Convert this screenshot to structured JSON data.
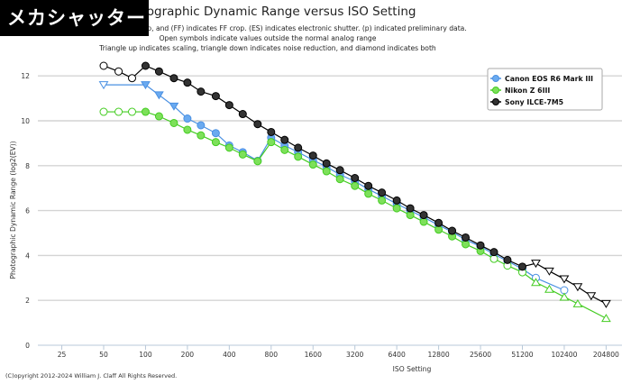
{
  "banner": "メカシャッター",
  "copyright": "(C)opyright 2012-2024 William J. Claff All Rights Reserved.",
  "chart_data": {
    "type": "line",
    "title": "Photographic Dynamic Range versus ISO Setting",
    "subtitles": [
      "(A) indicates APS-C crop, and (FF) indicates FF crop. (ES) indicates electronic shutter. (p) indicated preliminary data.",
      "Open symbols indicate values outside the normal analog range",
      "Triangle up indicates scaling, triangle down indicates noise reduction, and diamond indicates both"
    ],
    "xlabel": "ISO Setting",
    "ylabel": "Photographic Dynamic Range (log2(EV))",
    "x_scale": "log2",
    "x_ticks": [
      "25",
      "50",
      "100",
      "200",
      "400",
      "800",
      "1600",
      "3200",
      "6400",
      "12800",
      "25600",
      "51200",
      "102400",
      "204800"
    ],
    "y_ticks": [
      "0",
      "2",
      "4",
      "6",
      "8",
      "10",
      "12"
    ],
    "ylim": [
      0,
      13
    ],
    "grid": "horizontal",
    "legend_position": "top-right",
    "marker_key": {
      "o": "filled circle",
      "oc": "open circle",
      "td": "open triangle down",
      "tdf": "filled triangle down",
      "tu": "open triangle up"
    },
    "series": [
      {
        "name": "Canon EOS R6 Mark III",
        "color": "#4a90e2",
        "fill": "#6aaaf0",
        "points": [
          [
            50,
            11.6,
            "td"
          ],
          [
            100,
            11.6,
            "tdf"
          ],
          [
            125,
            11.15,
            "tdf"
          ],
          [
            160,
            10.65,
            "tdf"
          ],
          [
            200,
            10.1,
            "o"
          ],
          [
            250,
            9.8,
            "o"
          ],
          [
            320,
            9.45,
            "o"
          ],
          [
            400,
            8.9,
            "o"
          ],
          [
            500,
            8.6,
            "o"
          ],
          [
            640,
            8.22,
            "o"
          ],
          [
            800,
            9.25,
            "o"
          ],
          [
            1000,
            8.9,
            "o"
          ],
          [
            1250,
            8.6,
            "o"
          ],
          [
            1600,
            8.25,
            "o"
          ],
          [
            2000,
            7.95,
            "o"
          ],
          [
            2500,
            7.6,
            "o"
          ],
          [
            3200,
            7.3,
            "o"
          ],
          [
            4000,
            6.95,
            "o"
          ],
          [
            5000,
            6.65,
            "o"
          ],
          [
            6400,
            6.3,
            "o"
          ],
          [
            8000,
            6.0,
            "o"
          ],
          [
            10000,
            5.7,
            "o"
          ],
          [
            12800,
            5.35,
            "o"
          ],
          [
            16000,
            5.05,
            "o"
          ],
          [
            20000,
            4.7,
            "o"
          ],
          [
            25600,
            4.4,
            "o"
          ],
          [
            32000,
            4.05,
            "o"
          ],
          [
            40000,
            3.75,
            "o"
          ],
          [
            51200,
            3.4,
            "o"
          ],
          [
            64000,
            3.0,
            "oc"
          ],
          [
            102400,
            2.45,
            "oc"
          ]
        ]
      },
      {
        "name": "Nikon Z 6III",
        "color": "#44cc22",
        "fill": "#7de05a",
        "points": [
          [
            50,
            10.4,
            "oc"
          ],
          [
            64,
            10.4,
            "oc"
          ],
          [
            80,
            10.4,
            "oc"
          ],
          [
            100,
            10.4,
            "o"
          ],
          [
            125,
            10.2,
            "o"
          ],
          [
            160,
            9.9,
            "o"
          ],
          [
            200,
            9.6,
            "o"
          ],
          [
            250,
            9.35,
            "o"
          ],
          [
            320,
            9.05,
            "o"
          ],
          [
            400,
            8.8,
            "o"
          ],
          [
            500,
            8.5,
            "o"
          ],
          [
            640,
            8.2,
            "o"
          ],
          [
            800,
            9.05,
            "o"
          ],
          [
            1000,
            8.7,
            "o"
          ],
          [
            1250,
            8.4,
            "o"
          ],
          [
            1600,
            8.05,
            "o"
          ],
          [
            2000,
            7.75,
            "o"
          ],
          [
            2500,
            7.4,
            "o"
          ],
          [
            3200,
            7.1,
            "o"
          ],
          [
            4000,
            6.75,
            "o"
          ],
          [
            5000,
            6.45,
            "o"
          ],
          [
            6400,
            6.1,
            "o"
          ],
          [
            8000,
            5.8,
            "o"
          ],
          [
            10000,
            5.5,
            "o"
          ],
          [
            12800,
            5.15,
            "o"
          ],
          [
            16000,
            4.85,
            "o"
          ],
          [
            20000,
            4.5,
            "o"
          ],
          [
            25600,
            4.2,
            "o"
          ],
          [
            32000,
            3.85,
            "oc"
          ],
          [
            40000,
            3.55,
            "oc"
          ],
          [
            51200,
            3.25,
            "oc"
          ],
          [
            64000,
            2.8,
            "tu"
          ],
          [
            80000,
            2.5,
            "tu"
          ],
          [
            102400,
            2.15,
            "tu"
          ],
          [
            128000,
            1.85,
            "tu"
          ],
          [
            204800,
            1.2,
            "tu"
          ]
        ]
      },
      {
        "name": "Sony ILCE-7M5",
        "color": "#000000",
        "fill": "#333333",
        "points": [
          [
            50,
            12.45,
            "oc"
          ],
          [
            64,
            12.2,
            "oc"
          ],
          [
            80,
            11.9,
            "oc"
          ],
          [
            100,
            12.45,
            "o"
          ],
          [
            125,
            12.2,
            "o"
          ],
          [
            160,
            11.9,
            "o"
          ],
          [
            200,
            11.7,
            "o"
          ],
          [
            250,
            11.3,
            "o"
          ],
          [
            320,
            11.1,
            "o"
          ],
          [
            400,
            10.7,
            "o"
          ],
          [
            500,
            10.3,
            "o"
          ],
          [
            640,
            9.85,
            "o"
          ],
          [
            800,
            9.5,
            "o"
          ],
          [
            1000,
            9.15,
            "o"
          ],
          [
            1250,
            8.8,
            "o"
          ],
          [
            1600,
            8.45,
            "o"
          ],
          [
            2000,
            8.1,
            "o"
          ],
          [
            2500,
            7.8,
            "o"
          ],
          [
            3200,
            7.45,
            "o"
          ],
          [
            4000,
            7.1,
            "o"
          ],
          [
            5000,
            6.8,
            "o"
          ],
          [
            6400,
            6.45,
            "o"
          ],
          [
            8000,
            6.1,
            "o"
          ],
          [
            10000,
            5.8,
            "o"
          ],
          [
            12800,
            5.45,
            "o"
          ],
          [
            16000,
            5.1,
            "o"
          ],
          [
            20000,
            4.8,
            "o"
          ],
          [
            25600,
            4.45,
            "o"
          ],
          [
            32000,
            4.15,
            "o"
          ],
          [
            40000,
            3.8,
            "o"
          ],
          [
            51200,
            3.5,
            "o"
          ],
          [
            64000,
            3.65,
            "td"
          ],
          [
            80000,
            3.3,
            "td"
          ],
          [
            102400,
            2.95,
            "td"
          ],
          [
            128000,
            2.6,
            "td"
          ],
          [
            160000,
            2.2,
            "td"
          ],
          [
            204800,
            1.85,
            "td"
          ]
        ]
      }
    ]
  }
}
